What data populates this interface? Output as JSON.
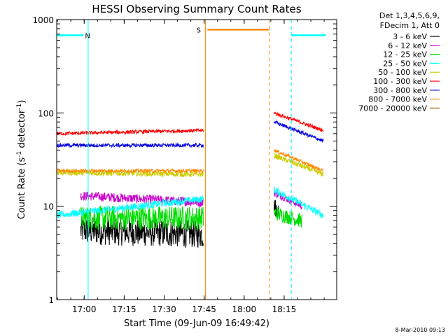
{
  "chart_data": {
    "type": "line",
    "title": "HESSI Observing Summary Count Rates",
    "xlabel": "Start Time (09-Jun-09 16:49:42)",
    "ylabel_main": "Count Rate (s",
    "ylabel_sup1": "-1",
    "ylabel_mid": " detector",
    "ylabel_sup2": "-1",
    "ylabel_end": ")",
    "yscale": "log",
    "ylim": [
      1,
      1000
    ],
    "xlim_minutes": [
      0,
      105
    ],
    "x_ticks": [
      {
        "label": "17:00",
        "min": 10.3
      },
      {
        "label": "17:15",
        "min": 25.3
      },
      {
        "label": "17:30",
        "min": 40.3
      },
      {
        "label": "17:45",
        "min": 55.3
      },
      {
        "label": "18:00",
        "min": 70.3
      },
      {
        "label": "18:15",
        "min": 85.3
      }
    ],
    "y_ticks": [
      {
        "label": "1",
        "value": 1
      },
      {
        "label": "10",
        "value": 10
      },
      {
        "label": "100",
        "value": 100
      },
      {
        "label": "1000",
        "value": 1000
      }
    ],
    "legend_header": [
      "Det 1,3,4,5,6,9,",
      "FDecim 1, Att 0"
    ],
    "legend_position": "right",
    "series": [
      {
        "name": "3 - 6 keV",
        "color": "#000000",
        "segments": [
          {
            "x": [
              9,
              55
            ],
            "values": [
              5.5,
              5.0
            ],
            "noise": 0.15
          },
          {
            "x": [
              81.5,
              83.5
            ],
            "values": [
              10,
              8.5
            ],
            "noise": 0.1
          }
        ]
      },
      {
        "name": "6 - 12 keV",
        "color": "#cc00cc",
        "segments": [
          {
            "x": [
              9,
              55
            ],
            "values": [
              13,
              11
            ],
            "noise": 0.05
          },
          {
            "x": [
              81.5,
              92
            ],
            "values": [
              14,
              10
            ],
            "noise": 0.04
          }
        ]
      },
      {
        "name": "12 - 25 keV",
        "color": "#00dd00",
        "segments": [
          {
            "x": [
              9,
              55
            ],
            "values": [
              7.5,
              7.5
            ],
            "noise": 0.13
          },
          {
            "x": [
              81.5,
              92
            ],
            "values": [
              8.5,
              7
            ],
            "noise": 0.08
          }
        ]
      },
      {
        "name": "25 - 50 keV",
        "color": "#00ffff",
        "segments": [
          {
            "x": [
              0,
              55
            ],
            "values": [
              8,
              12
            ],
            "noise": 0.04
          },
          {
            "x": [
              81.5,
              100
            ],
            "values": [
              15,
              8
            ],
            "noise": 0.04
          }
        ]
      },
      {
        "name": "50 - 100 keV",
        "color": "#cccc00",
        "segments": [
          {
            "x": [
              0,
              55
            ],
            "values": [
              23,
              22
            ],
            "noise": 0.03
          },
          {
            "x": [
              81.5,
              100
            ],
            "values": [
              35,
              22
            ],
            "noise": 0.03
          }
        ]
      },
      {
        "name": "100 - 300 keV",
        "color": "#ff0000",
        "segments": [
          {
            "x": [
              0,
              55
            ],
            "values": [
              60,
              65
            ],
            "noise": 0.02
          },
          {
            "x": [
              81.5,
              100
            ],
            "values": [
              100,
              65
            ],
            "noise": 0.02
          }
        ]
      },
      {
        "name": "300 - 800 keV",
        "color": "#0000dd",
        "segments": [
          {
            "x": [
              0,
              55
            ],
            "values": [
              45,
              45
            ],
            "noise": 0.02
          },
          {
            "x": [
              81.5,
              100
            ],
            "values": [
              80,
              50
            ],
            "noise": 0.02
          }
        ]
      },
      {
        "name": "800 - 7000 keV",
        "color": "#ff8800",
        "segments": [
          {
            "x": [
              0,
              55
            ],
            "values": [
              24,
              24
            ],
            "noise": 0.02
          },
          {
            "x": [
              81.5,
              100
            ],
            "values": [
              40,
              24
            ],
            "noise": 0.02
          }
        ]
      },
      {
        "name": "7000 - 20000 keV",
        "color": "#996600",
        "segments": []
      }
    ],
    "annotations": [
      {
        "label": "N",
        "color": "#00ffff",
        "start_min": 11.8,
        "end_min": 88.0,
        "level": 680
      },
      {
        "label": "S",
        "color": "#ff8800",
        "start_min": 55.8,
        "end_min": 79.7,
        "level": 780
      }
    ],
    "footer_date": "8-Mar-2010 09:13"
  }
}
